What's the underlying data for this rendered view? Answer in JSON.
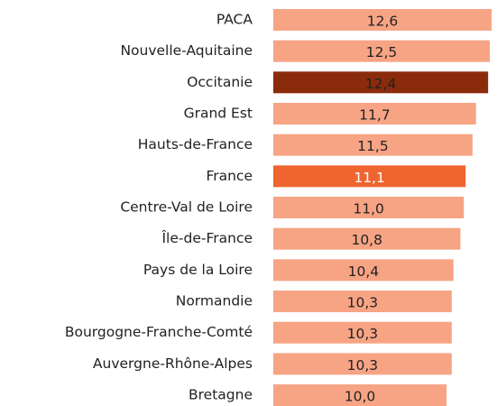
{
  "chart_data": {
    "type": "bar",
    "orientation": "horizontal",
    "categories": [
      "PACA",
      "Nouvelle-Aquitaine",
      "Occitanie",
      "Grand Est",
      "Hauts-de-France",
      "France",
      "Centre-Val de Loire",
      "Île-de-France",
      "Pays de la Loire",
      "Normandie",
      "Bourgogne-Franche-Comté",
      "Auvergne-Rhône-Alpes",
      "Bretagne"
    ],
    "values": [
      12.6,
      12.5,
      12.4,
      11.7,
      11.5,
      11.1,
      11.0,
      10.8,
      10.4,
      10.3,
      10.3,
      10.3,
      10.0
    ],
    "value_labels": [
      "12,6",
      "12,5",
      "12,4",
      "11,7",
      "11,5",
      "11,1",
      "11,0",
      "10,8",
      "10,4",
      "10,3",
      "10,3",
      "10,3",
      "10,0"
    ],
    "colors": [
      "#f7a485",
      "#f7a485",
      "#8a2b0b",
      "#f7a485",
      "#f7a485",
      "#ef6530",
      "#f7a485",
      "#f7a485",
      "#f7a485",
      "#f7a485",
      "#f7a485",
      "#f7a485",
      "#f7a485"
    ],
    "label_colors": [
      "#222222",
      "#222222",
      "#222222",
      "#222222",
      "#222222",
      "#ffffff",
      "#222222",
      "#222222",
      "#222222",
      "#222222",
      "#222222",
      "#222222",
      "#222222"
    ],
    "xlim": [
      0,
      12.6
    ]
  }
}
